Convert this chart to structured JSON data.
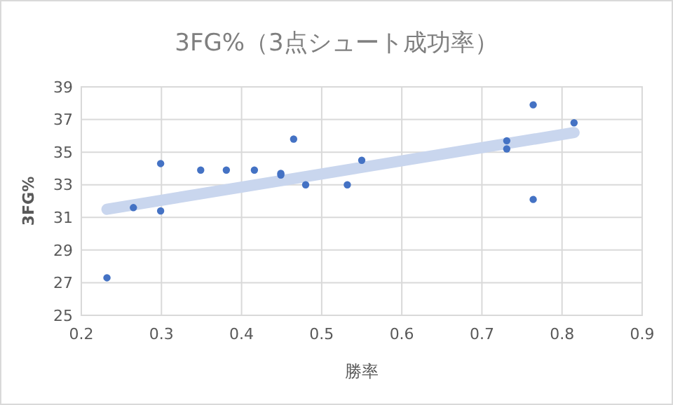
{
  "chart_data": {
    "type": "scatter",
    "title": "3FG%（3点シュート成功率）",
    "xlabel": "勝率",
    "ylabel": "3FG%",
    "xlim": [
      0.2,
      0.9
    ],
    "xticks": [
      0.2,
      0.3,
      0.4,
      0.5,
      0.6,
      0.7,
      0.8,
      0.9
    ],
    "ylim": [
      25,
      39
    ],
    "yticks": [
      25,
      27,
      29,
      31,
      33,
      35,
      37,
      39
    ],
    "grid": true,
    "series": [
      {
        "color": "#4472c4",
        "marker": "circle",
        "x": [
          0.232,
          0.265,
          0.299,
          0.299,
          0.349,
          0.381,
          0.416,
          0.449,
          0.449,
          0.465,
          0.48,
          0.532,
          0.55,
          0.731,
          0.731,
          0.764,
          0.764,
          0.815
        ],
        "values": [
          27.3,
          31.6,
          34.3,
          31.4,
          33.9,
          33.9,
          33.9,
          33.7,
          33.6,
          35.8,
          33.0,
          33.0,
          34.5,
          35.7,
          35.2,
          37.9,
          32.1,
          36.8
        ]
      },
      {
        "type": "line",
        "color": "#c9d6ee",
        "x": [
          0.232,
          0.815
        ],
        "values": [
          31.5,
          36.2
        ]
      }
    ]
  }
}
